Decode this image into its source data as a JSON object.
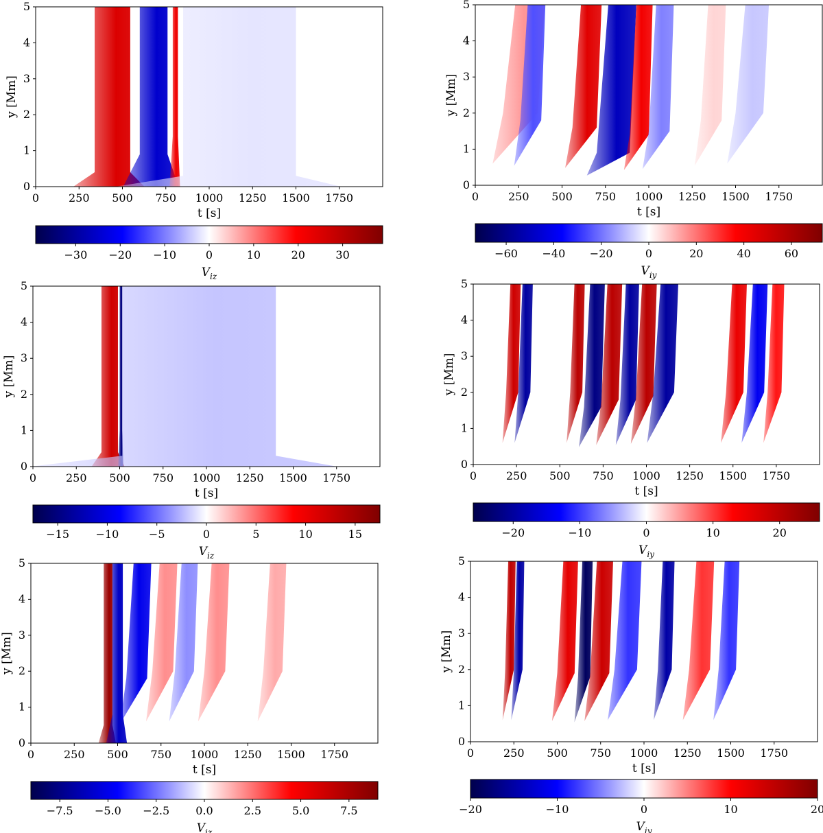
{
  "chart_data": [
    {
      "type": "heatmap",
      "panel": "top-left",
      "xlabel": "t [s]",
      "ylabel": "y [Mm]",
      "xlim": [
        0,
        2000
      ],
      "ylim": [
        0,
        5
      ],
      "xticks": [
        0,
        250,
        500,
        750,
        1000,
        1250,
        1500,
        1750
      ],
      "yticks": [
        0,
        1,
        2,
        3,
        4,
        5
      ],
      "colorbar": {
        "label": "V_iz",
        "label_main": "V",
        "label_sub": "iz",
        "range": [
          -39,
          39
        ],
        "ticks": [
          -30,
          -20,
          -10,
          0,
          10,
          20,
          30
        ],
        "tick_labels": [
          "−30",
          "−20",
          "−10",
          "0",
          "10",
          "20",
          "30"
        ]
      },
      "features": [
        {
          "shape": "band",
          "t_start": 340,
          "t_end": 545,
          "y_base": 0.4,
          "value": 25
        },
        {
          "shape": "band",
          "t_start": 600,
          "t_end": 760,
          "y_base": 0.9,
          "value": -25
        },
        {
          "shape": "band",
          "t_start": 790,
          "t_end": 820,
          "y_base": 1.4,
          "value": 22
        },
        {
          "shape": "band",
          "t_start": 850,
          "t_end": 1500,
          "y_base": 0.3,
          "value": -2
        }
      ]
    },
    {
      "type": "heatmap",
      "panel": "top-right",
      "xlabel": "t [s]",
      "ylabel": "y [Mm]",
      "xlim": [
        0,
        2000
      ],
      "ylim": [
        0,
        5
      ],
      "xticks": [
        0,
        250,
        500,
        750,
        1000,
        1250,
        1500,
        1750
      ],
      "yticks": [
        0,
        1,
        2,
        3,
        4,
        5
      ],
      "colorbar": {
        "label": "V_iy",
        "label_main": "V",
        "label_sub": "iy",
        "range": [
          -73,
          73
        ],
        "ticks": [
          -60,
          -40,
          -20,
          0,
          20,
          40,
          60
        ],
        "tick_labels": [
          "−60",
          "−40",
          "−20",
          "0",
          "20",
          "40",
          "60"
        ]
      },
      "features": [
        {
          "shape": "wedge",
          "t_start": 160,
          "t_end": 360,
          "y_base": 2.0,
          "value": 15
        },
        {
          "shape": "wedge",
          "t_start": 260,
          "t_end": 380,
          "y_base": 1.8,
          "value": -25
        },
        {
          "shape": "wedge",
          "t_start": 560,
          "t_end": 700,
          "y_base": 1.6,
          "value": 45
        },
        {
          "shape": "wedge",
          "t_start": 700,
          "t_end": 890,
          "y_base": 0.9,
          "value": -50
        },
        {
          "shape": "wedge",
          "t_start": 890,
          "t_end": 1000,
          "y_base": 1.4,
          "value": 40
        },
        {
          "shape": "wedge",
          "t_start": 1000,
          "t_end": 1120,
          "y_base": 1.5,
          "value": -18
        },
        {
          "shape": "wedge",
          "t_start": 1300,
          "t_end": 1420,
          "y_base": 1.8,
          "value": 6
        },
        {
          "shape": "wedge",
          "t_start": 1500,
          "t_end": 1660,
          "y_base": 2.0,
          "value": -8
        }
      ]
    },
    {
      "type": "heatmap",
      "panel": "middle-left",
      "xlabel": "t [s]",
      "ylabel": "y [Mm]",
      "xlim": [
        0,
        2000
      ],
      "ylim": [
        0,
        5
      ],
      "xticks": [
        0,
        250,
        500,
        750,
        1000,
        1250,
        1500,
        1750
      ],
      "yticks": [
        0,
        1,
        2,
        3,
        4,
        5
      ],
      "colorbar": {
        "label": "V_iz",
        "label_main": "V",
        "label_sub": "iz",
        "range": [
          -17.5,
          17.5
        ],
        "ticks": [
          -15,
          -10,
          -5,
          0,
          5,
          10,
          15
        ],
        "tick_labels": [
          "−15",
          "−10",
          "−5",
          "0",
          "5",
          "10",
          "15"
        ]
      },
      "features": [
        {
          "shape": "band",
          "t_start": 395,
          "t_end": 490,
          "y_base": 0.4,
          "value": 12
        },
        {
          "shape": "band",
          "t_start": 500,
          "t_end": 515,
          "y_base": 1.0,
          "value": -15
        },
        {
          "shape": "band",
          "t_start": 515,
          "t_end": 1400,
          "y_base": 0.3,
          "value": -2
        }
      ]
    },
    {
      "type": "heatmap",
      "panel": "middle-right",
      "xlabel": "t [s]",
      "ylabel": "y [Mm]",
      "xlim": [
        0,
        2000
      ],
      "ylim": [
        0,
        5
      ],
      "xticks": [
        0,
        250,
        500,
        750,
        1000,
        1250,
        1500,
        1750
      ],
      "yticks": [
        0,
        1,
        2,
        3,
        4,
        5
      ],
      "colorbar": {
        "label": "V_iy",
        "label_main": "V",
        "label_sub": "iy",
        "range": [
          -26,
          26
        ],
        "ticks": [
          -20,
          -10,
          0,
          10,
          20
        ],
        "tick_labels": [
          "−20",
          "−10",
          "0",
          "10",
          "20"
        ]
      },
      "features": [
        {
          "shape": "wedge",
          "t_start": 190,
          "t_end": 260,
          "y_base": 2.0,
          "value": 18
        },
        {
          "shape": "wedge",
          "t_start": 260,
          "t_end": 330,
          "y_base": 2.0,
          "value": -20
        },
        {
          "shape": "wedge",
          "t_start": 560,
          "t_end": 630,
          "y_base": 2.0,
          "value": 20
        },
        {
          "shape": "wedge",
          "t_start": 640,
          "t_end": 740,
          "y_base": 1.6,
          "value": -22
        },
        {
          "shape": "wedge",
          "t_start": 740,
          "t_end": 840,
          "y_base": 1.8,
          "value": 20
        },
        {
          "shape": "wedge",
          "t_start": 850,
          "t_end": 940,
          "y_base": 1.8,
          "value": -20
        },
        {
          "shape": "wedge",
          "t_start": 940,
          "t_end": 1040,
          "y_base": 1.9,
          "value": 20
        },
        {
          "shape": "wedge",
          "t_start": 1040,
          "t_end": 1160,
          "y_base": 2.0,
          "value": -20
        },
        {
          "shape": "wedge",
          "t_start": 1460,
          "t_end": 1560,
          "y_base": 2.0,
          "value": 15
        },
        {
          "shape": "wedge",
          "t_start": 1580,
          "t_end": 1680,
          "y_base": 2.0,
          "value": -14
        },
        {
          "shape": "wedge",
          "t_start": 1700,
          "t_end": 1780,
          "y_base": 2.0,
          "value": 12
        }
      ]
    },
    {
      "type": "heatmap",
      "panel": "bottom-left",
      "xlabel": "t [s]",
      "ylabel": "y [Mm]",
      "xlim": [
        0,
        2000
      ],
      "ylim": [
        0,
        5
      ],
      "xticks": [
        0,
        250,
        500,
        750,
        1000,
        1250,
        1500,
        1750
      ],
      "yticks": [
        0,
        1,
        2,
        3,
        4,
        5
      ],
      "colorbar": {
        "label": "V_iz",
        "label_main": "V",
        "label_sub": "iz",
        "range": [
          -9,
          9
        ],
        "ticks": [
          -7.5,
          -5.0,
          -2.5,
          0.0,
          2.5,
          5.0,
          7.5
        ],
        "tick_labels": [
          "−7.5",
          "−5.0",
          "−2.5",
          "0.0",
          "2.5",
          "5.0",
          "7.5"
        ]
      },
      "features": [
        {
          "shape": "band",
          "t_start": 420,
          "t_end": 470,
          "y_base": 0.5,
          "value": 8
        },
        {
          "shape": "band",
          "t_start": 470,
          "t_end": 530,
          "y_base": 0.8,
          "value": -6
        },
        {
          "shape": "wedge",
          "t_start": 550,
          "t_end": 670,
          "y_base": 1.8,
          "value": -5
        },
        {
          "shape": "wedge",
          "t_start": 700,
          "t_end": 820,
          "y_base": 2.0,
          "value": 2
        },
        {
          "shape": "wedge",
          "t_start": 830,
          "t_end": 940,
          "y_base": 2.0,
          "value": -2
        },
        {
          "shape": "wedge",
          "t_start": 1000,
          "t_end": 1120,
          "y_base": 2.0,
          "value": 2
        },
        {
          "shape": "wedge",
          "t_start": 1340,
          "t_end": 1450,
          "y_base": 2.0,
          "value": 1.5
        }
      ]
    },
    {
      "type": "heatmap",
      "panel": "bottom-right",
      "xlabel": "t [s]",
      "ylabel": "y [Mm]",
      "xlim": [
        0,
        2000
      ],
      "ylim": [
        0,
        5
      ],
      "xticks": [
        0,
        250,
        500,
        750,
        1000,
        1250,
        1500,
        1750
      ],
      "yticks": [
        0,
        1,
        2,
        3,
        4,
        5
      ],
      "colorbar": {
        "label": "V_iy",
        "label_main": "V",
        "label_sub": "iy",
        "range": [
          -20,
          20
        ],
        "ticks": [
          -20,
          -10,
          0,
          10,
          20
        ],
        "tick_labels": [
          "−20",
          "−10",
          "0",
          "10",
          "20"
        ]
      },
      "features": [
        {
          "shape": "wedge",
          "t_start": 200,
          "t_end": 250,
          "y_base": 2.0,
          "value": 15
        },
        {
          "shape": "wedge",
          "t_start": 250,
          "t_end": 300,
          "y_base": 2.0,
          "value": -15
        },
        {
          "shape": "wedge",
          "t_start": 500,
          "t_end": 600,
          "y_base": 1.9,
          "value": 12
        },
        {
          "shape": "wedge",
          "t_start": 620,
          "t_end": 690,
          "y_base": 1.8,
          "value": -19
        },
        {
          "shape": "wedge",
          "t_start": 690,
          "t_end": 800,
          "y_base": 1.9,
          "value": 14
        },
        {
          "shape": "wedge",
          "t_start": 830,
          "t_end": 960,
          "y_base": 2.0,
          "value": -8
        },
        {
          "shape": "wedge",
          "t_start": 1080,
          "t_end": 1160,
          "y_base": 2.0,
          "value": -15
        },
        {
          "shape": "wedge",
          "t_start": 1260,
          "t_end": 1380,
          "y_base": 2.0,
          "value": 8
        },
        {
          "shape": "wedge",
          "t_start": 1430,
          "t_end": 1530,
          "y_base": 2.0,
          "value": -8
        }
      ]
    }
  ]
}
